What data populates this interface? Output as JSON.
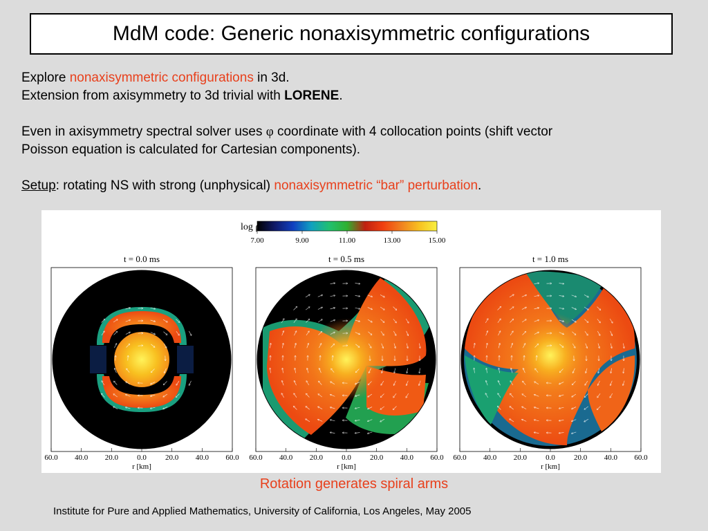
{
  "title": "MdM code: Generic nonaxisymmetric configurations",
  "line1": {
    "a": "Explore ",
    "b": "nonaxisymmetric configurations",
    "c": " in 3d."
  },
  "line2": {
    "a": "Extension from axisymmetry to 3d trivial with ",
    "b": "LORENE",
    "c": "."
  },
  "para2": {
    "a": "Even in axisymmetry spectral solver uses ",
    "phi": "φ",
    "b": " coordinate with 4 collocation points (shift vector",
    "c": "Poisson equation is calculated for Cartesian components)."
  },
  "setup": {
    "label": "Setup",
    "a": ": rotating NS with strong (unphysical) ",
    "b": "nonaxisymmetric “bar” perturbation",
    "c": "."
  },
  "colorbar": {
    "label": "log ρ",
    "ticks": [
      "7.00",
      "9.00",
      "11.00",
      "13.00",
      "15.00"
    ],
    "colors": [
      "#000000",
      "#101a6a",
      "#1040c0",
      "#10a0c0",
      "#20c070",
      "#30b030",
      "#c02010",
      "#f04010",
      "#f08020",
      "#f8c020",
      "#f8f040"
    ]
  },
  "panels": [
    {
      "time": "t = 0.0 ms",
      "xlabel": "r [km]",
      "xticks": [
        "60.0",
        "40.0",
        "20.0",
        "0.0",
        "20.0",
        "40.0",
        "60.0"
      ]
    },
    {
      "time": "t = 0.5 ms",
      "xlabel": "r [km]",
      "xticks": [
        "60.0",
        "40.0",
        "20.0",
        "0.0",
        "20.0",
        "40.0",
        "60.0"
      ]
    },
    {
      "time": "t = 1.0 ms",
      "xlabel": "r [km]",
      "xticks": [
        "60.0",
        "40.0",
        "20.0",
        "0.0",
        "20.0",
        "40.0",
        "60.0"
      ]
    }
  ],
  "caption": "Rotation generates spiral arms",
  "footer": "Institute for Pure and Applied Mathematics, University of California, Los Angeles, May 2005"
}
